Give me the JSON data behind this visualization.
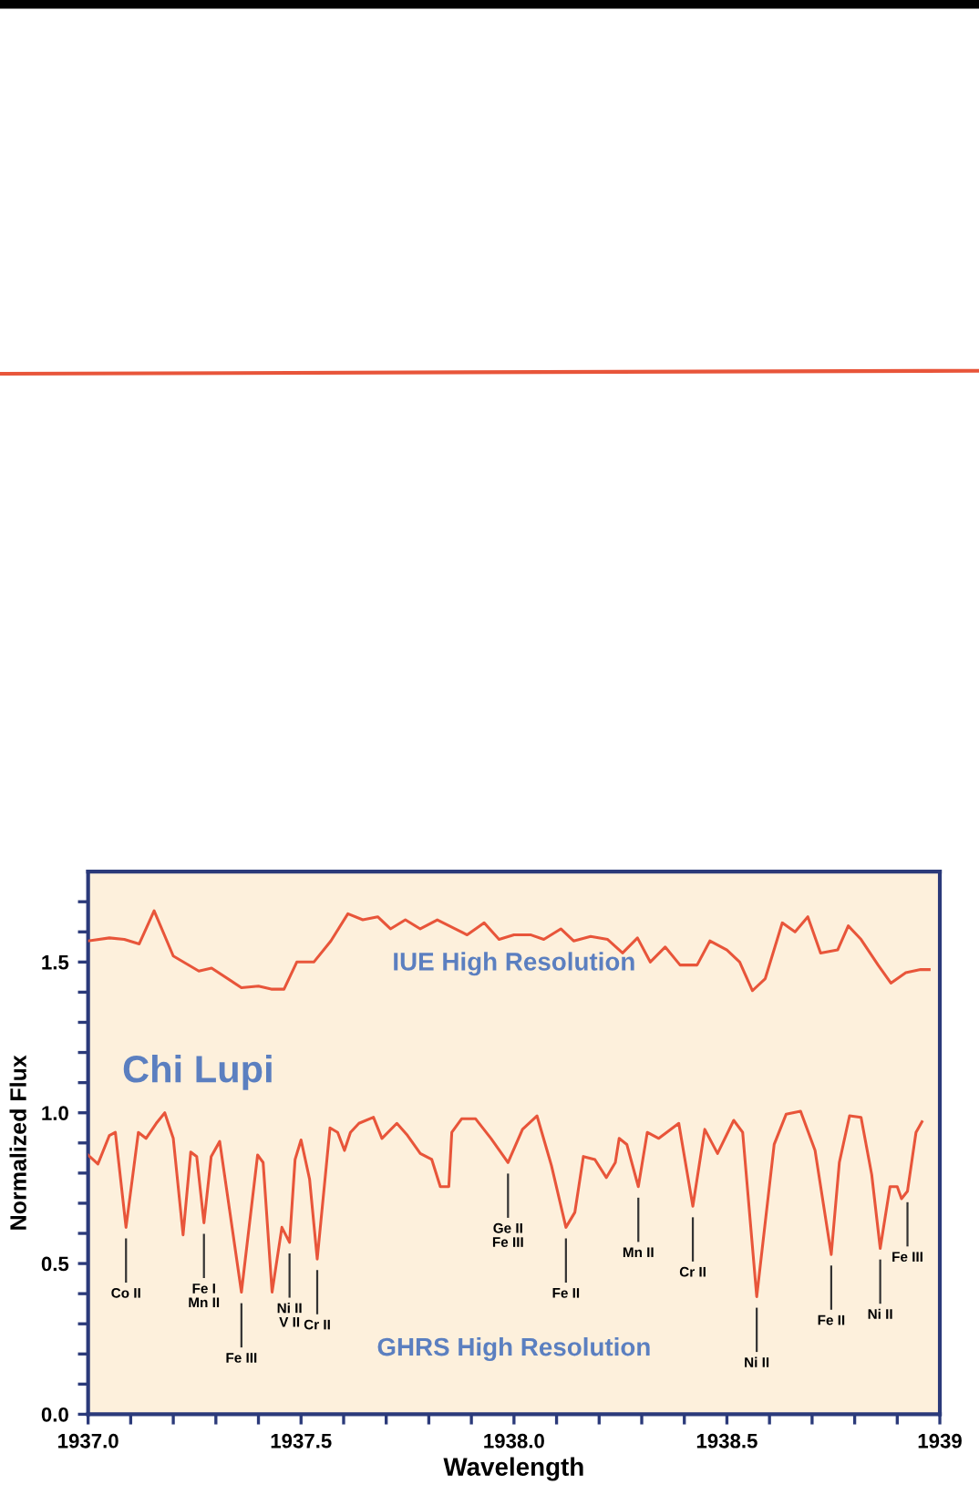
{
  "chart_data": {
    "type": "line",
    "xlabel": "Wavelength",
    "ylabel": "Normalized Flux",
    "xlim": [
      1937.0,
      1939.0
    ],
    "ylim": [
      0.0,
      1.8
    ],
    "xticks": [
      {
        "value": 1937.0,
        "label": "1937.0"
      },
      {
        "value": 1937.1,
        "label": null
      },
      {
        "value": 1937.2,
        "label": null
      },
      {
        "value": 1937.3,
        "label": null
      },
      {
        "value": 1937.4,
        "label": null
      },
      1937.5,
      {
        "value": 1937.6,
        "label": null
      },
      {
        "value": 1937.7,
        "label": null
      },
      {
        "value": 1937.8,
        "label": null
      },
      {
        "value": 1937.9,
        "label": null
      },
      {
        "value": 1938.0,
        "label": "1938.0"
      },
      {
        "value": 1938.1,
        "label": null
      },
      {
        "value": 1938.2,
        "label": null
      },
      {
        "value": 1938.3,
        "label": null
      },
      {
        "value": 1938.4,
        "label": null
      },
      1938.5,
      {
        "value": 1938.6,
        "label": null
      },
      {
        "value": 1938.7,
        "label": null
      },
      {
        "value": 1938.8,
        "label": null
      },
      {
        "value": 1938.9,
        "label": null
      },
      {
        "value": 1939.0,
        "label": "1939"
      }
    ],
    "yticks": [
      {
        "value": 0.0,
        "label": "0.0"
      },
      {
        "value": 0.1,
        "label": null
      },
      {
        "value": 0.2,
        "label": null
      },
      {
        "value": 0.3,
        "label": null
      },
      {
        "value": 0.4,
        "label": null
      },
      0.5,
      {
        "value": 0.6,
        "label": null
      },
      {
        "value": 0.7,
        "label": null
      },
      {
        "value": 0.8,
        "label": null
      },
      {
        "value": 0.9,
        "label": null
      },
      {
        "value": 1.0,
        "label": "1.0"
      },
      {
        "value": 1.1,
        "label": null
      },
      {
        "value": 1.2,
        "label": null
      },
      {
        "value": 1.3,
        "label": null
      },
      {
        "value": 1.4,
        "label": null
      },
      1.5,
      {
        "value": 1.6,
        "label": null
      },
      {
        "value": 1.7,
        "label": null
      }
    ],
    "grid": false,
    "legend": false,
    "marker": "none",
    "line_style": "solid",
    "series": [
      {
        "name": "IUE High Resolution",
        "color": "#e8553a",
        "x": [
          1937.0,
          1937.05,
          1937.085,
          1937.12,
          1937.155,
          1937.2,
          1937.26,
          1937.29,
          1937.36,
          1937.4,
          1937.43,
          1937.46,
          1937.49,
          1937.53,
          1937.57,
          1937.61,
          1937.645,
          1937.68,
          1937.71,
          1937.745,
          1937.78,
          1937.82,
          1937.89,
          1937.93,
          1937.965,
          1938.0,
          1938.04,
          1938.07,
          1938.11,
          1938.14,
          1938.18,
          1938.22,
          1938.255,
          1938.29,
          1938.32,
          1938.355,
          1938.39,
          1938.43,
          1938.46,
          1938.5,
          1938.53,
          1938.56,
          1938.59,
          1938.63,
          1938.66,
          1938.69,
          1938.72,
          1938.76,
          1938.785,
          1938.815,
          1938.855,
          1938.885,
          1938.92,
          1938.955,
          1938.975
        ],
        "values": [
          1.57,
          1.58,
          1.575,
          1.56,
          1.67,
          1.52,
          1.47,
          1.48,
          1.415,
          1.42,
          1.41,
          1.41,
          1.5,
          1.5,
          1.57,
          1.66,
          1.64,
          1.65,
          1.61,
          1.64,
          1.61,
          1.64,
          1.59,
          1.63,
          1.575,
          1.59,
          1.59,
          1.575,
          1.61,
          1.57,
          1.585,
          1.575,
          1.53,
          1.58,
          1.5,
          1.55,
          1.49,
          1.49,
          1.57,
          1.54,
          1.5,
          1.405,
          1.445,
          1.63,
          1.6,
          1.65,
          1.53,
          1.54,
          1.62,
          1.575,
          1.49,
          1.43,
          1.465,
          1.475,
          1.475
        ]
      },
      {
        "color": "#e8553a",
        "x": [
          1937.0,
          1937.023,
          1937.05,
          1937.064,
          1937.089,
          1937.118,
          1937.136,
          1937.16,
          1937.18,
          1937.2,
          1937.223,
          1937.241,
          1937.255,
          1937.272,
          1937.289,
          1937.309,
          1937.36,
          1937.398,
          1937.411,
          1937.432,
          1937.455,
          1937.473,
          1937.486,
          1937.5,
          1937.52,
          1937.538,
          1937.568,
          1937.586,
          1937.602,
          1937.616,
          1937.636,
          1937.67,
          1937.69,
          1937.725,
          1937.75,
          1937.78,
          1937.807,
          1937.827,
          1937.847,
          1937.854,
          1937.877,
          1937.91,
          1937.946,
          1937.986,
          1938.02,
          1938.054,
          1938.088,
          1938.122,
          1938.143,
          1938.163,
          1938.19,
          1938.217,
          1938.238,
          1938.247,
          1938.265,
          1938.292,
          1938.313,
          1938.34,
          1938.387,
          1938.42,
          1938.448,
          1938.478,
          1938.516,
          1938.537,
          1938.57,
          1938.611,
          1938.639,
          1938.673,
          1938.707,
          1938.745,
          1938.764,
          1938.788,
          1938.815,
          1938.84,
          1938.86,
          1938.883,
          1938.9,
          1938.91,
          1938.924,
          1938.944,
          1938.958
        ],
        "values": [
          0.86,
          0.83,
          0.925,
          0.935,
          0.62,
          0.935,
          0.915,
          0.965,
          1.0,
          0.915,
          0.595,
          0.87,
          0.855,
          0.635,
          0.855,
          0.905,
          0.405,
          0.86,
          0.835,
          0.405,
          0.62,
          0.57,
          0.845,
          0.91,
          0.78,
          0.515,
          0.95,
          0.935,
          0.875,
          0.935,
          0.965,
          0.985,
          0.915,
          0.965,
          0.925,
          0.865,
          0.845,
          0.755,
          0.755,
          0.935,
          0.98,
          0.98,
          0.915,
          0.835,
          0.945,
          0.99,
          0.825,
          0.62,
          0.67,
          0.855,
          0.845,
          0.785,
          0.835,
          0.915,
          0.895,
          0.755,
          0.935,
          0.915,
          0.965,
          0.69,
          0.945,
          0.865,
          0.975,
          0.935,
          0.39,
          0.895,
          0.995,
          1.005,
          0.875,
          0.53,
          0.835,
          0.99,
          0.985,
          0.795,
          0.55,
          0.755,
          0.755,
          0.715,
          0.74,
          0.935,
          0.97
        ]
      }
    ],
    "annotations": [
      "Chi Lupi",
      "GHRS High Resolution",
      {
        "text": "Co II",
        "x": 1937.089,
        "y": 0.62
      },
      {
        "text": "Fe I\nMn II",
        "x": 1937.272,
        "y": 0.635
      },
      {
        "text": "Fe III",
        "x": 1937.36,
        "y": 0.405
      },
      {
        "text": "Ni II\nV II",
        "x": 1937.473,
        "y": 0.57
      },
      {
        "text": "Cr II",
        "x": 1937.538,
        "y": 0.515
      },
      {
        "text": "Ge II\nFe III",
        "x": 1937.986,
        "y": 0.835
      },
      {
        "text": "Fe II",
        "x": 1938.122,
        "y": 0.62
      },
      {
        "text": "Mn II",
        "x": 1938.292,
        "y": 0.755
      },
      {
        "text": "Cr II",
        "x": 1938.42,
        "y": 0.69
      },
      {
        "text": "Ni II",
        "x": 1938.57,
        "y": 0.39
      },
      {
        "text": "Fe II",
        "x": 1938.745,
        "y": 0.53
      },
      {
        "text": "Ni II",
        "x": 1938.86,
        "y": 0.55
      },
      {
        "text": "Fe III",
        "x": 1938.924,
        "y": 0.74
      }
    ]
  }
}
